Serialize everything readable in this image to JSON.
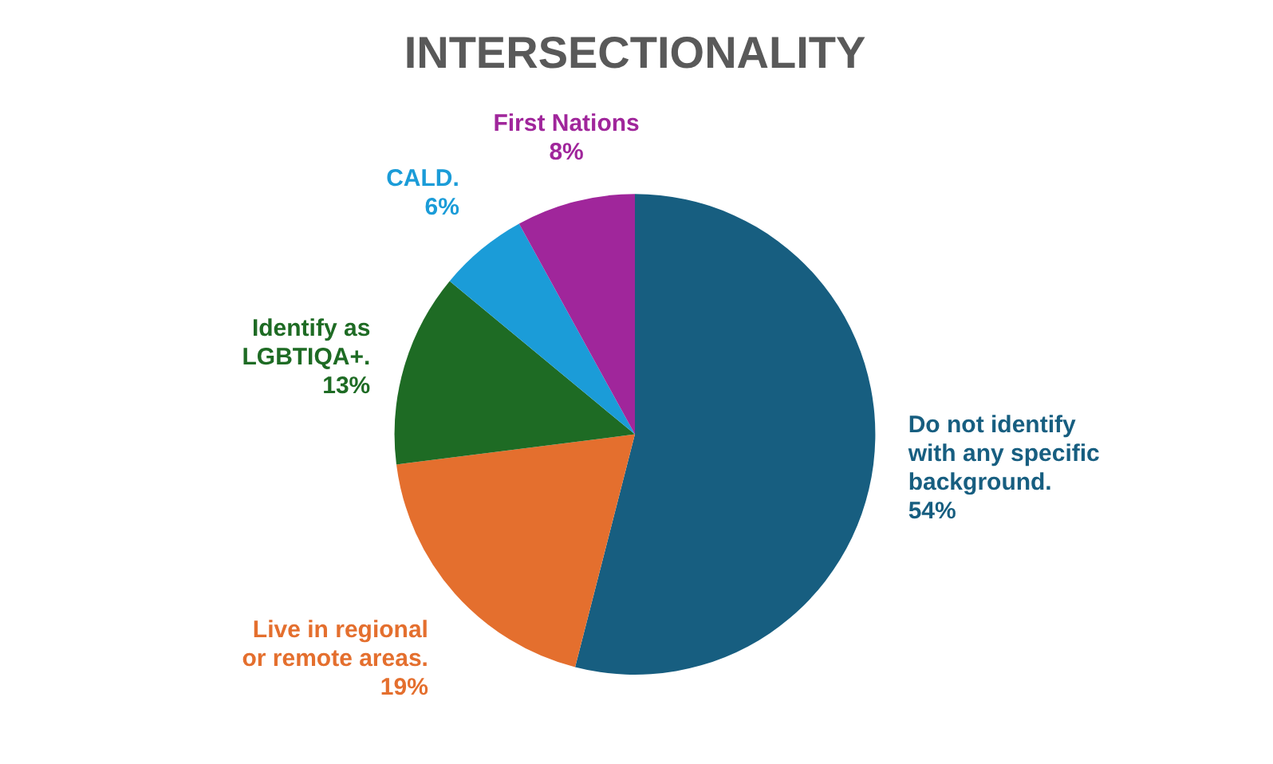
{
  "chart_data": {
    "type": "pie",
    "title": "INTERSECTIONALITY",
    "categories": [
      "Do not identify with any specific background.",
      "Live in regional or remote areas.",
      "Identify as LGBTIQA+.",
      "CALD.",
      "First Nations"
    ],
    "values": [
      54,
      19,
      13,
      6,
      8
    ],
    "value_labels": [
      "54%",
      "19%",
      "13%",
      "6%",
      "8%"
    ],
    "colors": [
      "#175e80",
      "#e46f2e",
      "#1e6b24",
      "#1b9cd8",
      "#a0269b"
    ],
    "legend": false
  }
}
